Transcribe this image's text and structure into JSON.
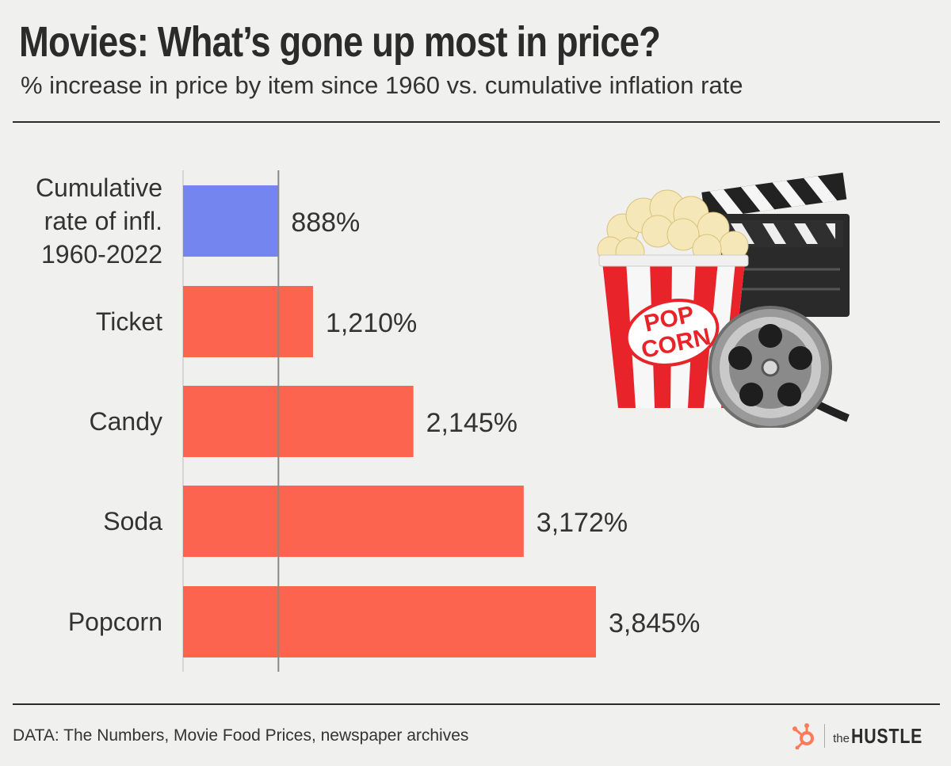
{
  "title": "Movies: What’s gone up most in price?",
  "subtitle": "% increase in price by item since 1960 vs. cumulative inflation rate",
  "source": "DATA: The Numbers, Movie Food Prices, newspaper archives",
  "logo": {
    "the": "the",
    "name": "HUSTLE"
  },
  "illustration": {
    "icons": [
      "popcorn-bucket-icon",
      "clapperboard-icon",
      "film-reel-icon"
    ],
    "text_lines": [
      "POP",
      "CORN"
    ]
  },
  "colors": {
    "inflation": "#7585f0",
    "items": "#fd6450",
    "background": "#f0f0ef",
    "logo_accent": "#ff7a59"
  },
  "chart_data": {
    "type": "bar",
    "orientation": "horizontal",
    "title": "Movies: What’s gone up most in price?",
    "subtitle": "% increase in price by item since 1960 vs. cumulative inflation rate",
    "categories": [
      [
        "Cumulative",
        "rate of infl.",
        "1960-2022"
      ],
      [
        "Ticket"
      ],
      [
        "Candy"
      ],
      [
        "Soda"
      ],
      [
        "Popcorn"
      ]
    ],
    "values": [
      888,
      1210,
      2145,
      3172,
      3845
    ],
    "value_labels": [
      "888%",
      "1,210%",
      "2,145%",
      "3,172%",
      "3,845%"
    ],
    "reference_line": 888,
    "xlim": [
      0,
      3845
    ],
    "grid": false,
    "legend": "none"
  }
}
